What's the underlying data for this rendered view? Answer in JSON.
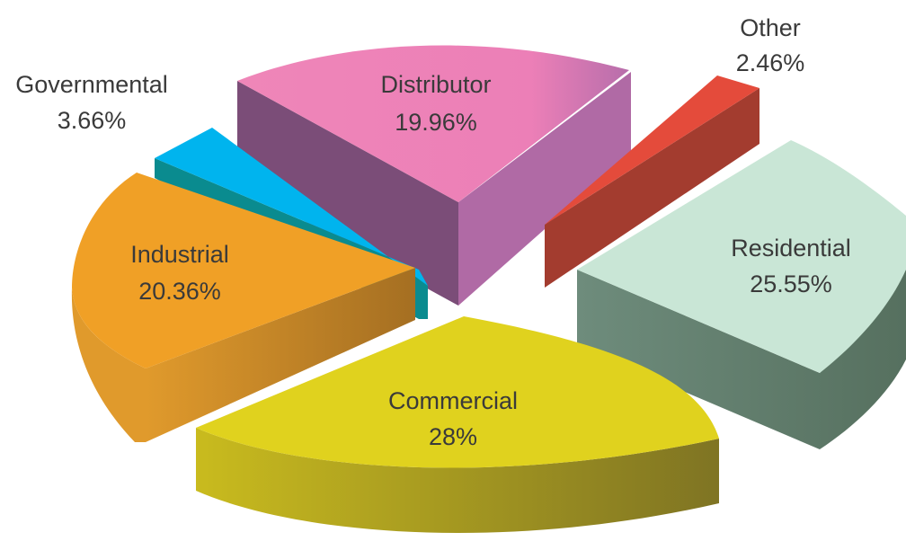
{
  "chart_data": {
    "type": "pie",
    "title": "",
    "slices": [
      {
        "label": "Distributor",
        "value": 19.96,
        "value_text": "19.96%",
        "color": "#ee82b6"
      },
      {
        "label": "Other",
        "value": 2.46,
        "value_text": "2.46%",
        "color": "#e44b3b"
      },
      {
        "label": "Residential",
        "value": 25.55,
        "value_text": "25.55%",
        "color": "#c9e6d6"
      },
      {
        "label": "Commercial",
        "value": 28,
        "value_text": "28%",
        "color": "#e0d21e"
      },
      {
        "label": "Industrial",
        "value": 20.36,
        "value_text": "20.36%",
        "color": "#f0a026"
      },
      {
        "label": "Governmental",
        "value": 3.66,
        "value_text": "3.66%",
        "color": "#00b4ee"
      }
    ],
    "legend": "none",
    "style": "3d-exploded"
  }
}
